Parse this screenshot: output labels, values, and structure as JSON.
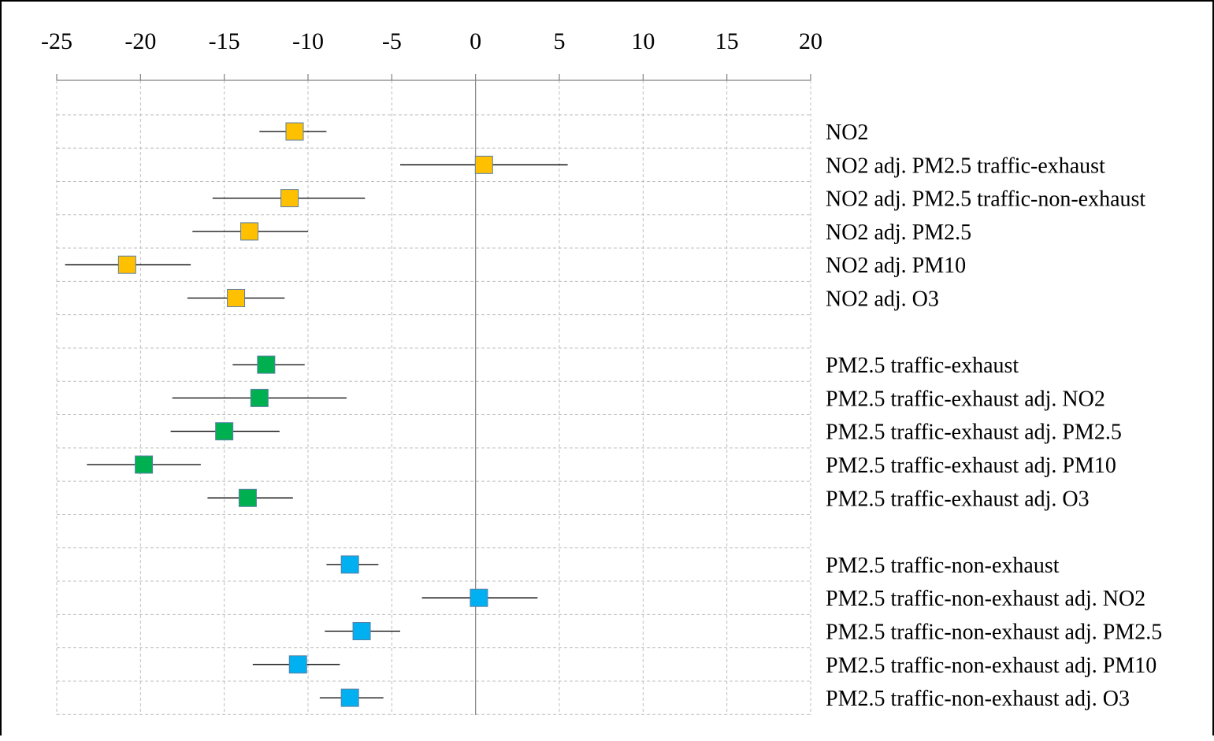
{
  "chart_data": {
    "type": "forest",
    "xlim": [
      -25,
      20
    ],
    "xticks": [
      -25,
      -20,
      -15,
      -10,
      -5,
      0,
      5,
      10,
      15,
      20
    ],
    "xtick_labels": [
      "-25",
      "-20",
      "-15",
      "-10",
      "-5",
      "0",
      "5",
      "10",
      "15",
      "20"
    ],
    "axis_position": "top",
    "grid": true,
    "colors": {
      "NO2": "#FFC000",
      "PM2.5 traffic-exhaust": "#00B050",
      "PM2.5 traffic-non-exhaust": "#00B0F0",
      "marker_border": "#5b7fa6",
      "grid": "#bfbfbf",
      "zero_line": "#808080"
    },
    "groups": [
      {
        "color": "#FFC000",
        "rows": [
          {
            "label": "NO2",
            "estimate": -10.8,
            "lower": -12.9,
            "upper": -8.9
          },
          {
            "label": "NO2 adj. PM2.5 traffic-exhaust",
            "estimate": 0.5,
            "lower": -4.5,
            "upper": 5.5
          },
          {
            "label": "NO2 adj. PM2.5 traffic-non-exhaust",
            "estimate": -11.1,
            "lower": -15.7,
            "upper": -6.6
          },
          {
            "label": "NO2 adj. PM2.5",
            "estimate": -13.5,
            "lower": -16.9,
            "upper": -10.0
          },
          {
            "label": "NO2 adj. PM10",
            "estimate": -20.8,
            "lower": -24.5,
            "upper": -17.0
          },
          {
            "label": "NO2 adj. O3",
            "estimate": -14.3,
            "lower": -17.2,
            "upper": -11.4
          }
        ]
      },
      {
        "color": "#00B050",
        "rows": [
          {
            "label": "PM2.5 traffic-exhaust",
            "estimate": -12.5,
            "lower": -14.5,
            "upper": -10.2
          },
          {
            "label": "PM2.5 traffic-exhaust adj. NO2",
            "estimate": -12.9,
            "lower": -18.1,
            "upper": -7.7
          },
          {
            "label": "PM2.5 traffic-exhaust adj. PM2.5",
            "estimate": -15.0,
            "lower": -18.2,
            "upper": -11.7
          },
          {
            "label": "PM2.5 traffic-exhaust adj. PM10",
            "estimate": -19.8,
            "lower": -23.2,
            "upper": -16.4
          },
          {
            "label": "PM2.5 traffic-exhaust adj. O3",
            "estimate": -13.6,
            "lower": -16.0,
            "upper": -10.9
          }
        ]
      },
      {
        "color": "#00B0F0",
        "rows": [
          {
            "label": "PM2.5 traffic-non-exhaust",
            "estimate": -7.5,
            "lower": -8.9,
            "upper": -5.8
          },
          {
            "label": "PM2.5 traffic-non-exhaust adj. NO2",
            "estimate": 0.2,
            "lower": -3.2,
            "upper": 3.7
          },
          {
            "label": "PM2.5 traffic-non-exhaust adj. PM2.5",
            "estimate": -6.8,
            "lower": -9.0,
            "upper": -4.5
          },
          {
            "label": "PM2.5 traffic-non-exhaust adj. PM10",
            "estimate": -10.6,
            "lower": -13.3,
            "upper": -8.1
          },
          {
            "label": "PM2.5 traffic-non-exhaust adj. O3",
            "estimate": -7.5,
            "lower": -9.3,
            "upper": -5.5
          }
        ]
      }
    ]
  }
}
